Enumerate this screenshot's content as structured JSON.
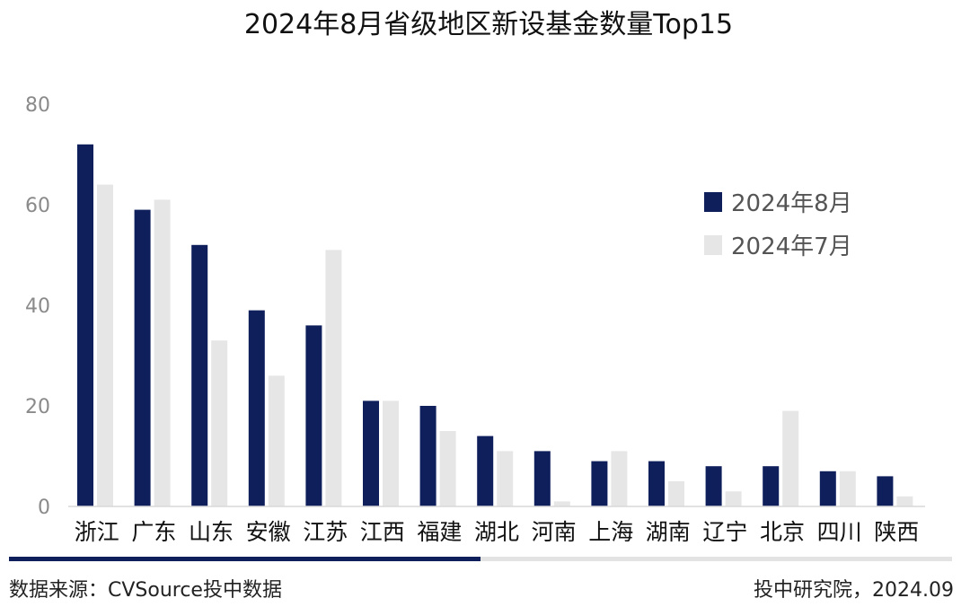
{
  "chart_data": {
    "type": "bar",
    "title": "2024年8月省级地区新设基金数量Top15",
    "xlabel": "",
    "ylabel": "",
    "ylim": [
      0,
      80
    ],
    "yticks": [
      0,
      20,
      40,
      60,
      80
    ],
    "grid": false,
    "legend_position": "right",
    "categories": [
      "浙江",
      "广东",
      "山东",
      "安徽",
      "江苏",
      "江西",
      "福建",
      "湖北",
      "河南",
      "上海",
      "湖南",
      "辽宁",
      "北京",
      "四川",
      "陕西"
    ],
    "series": [
      {
        "name": "2024年8月",
        "color": "#0e1f5b",
        "values": [
          72,
          59,
          52,
          39,
          36,
          21,
          20,
          14,
          11,
          9,
          9,
          8,
          8,
          7,
          6
        ]
      },
      {
        "name": "2024年7月",
        "color": "#e6e6e6",
        "values": [
          64,
          61,
          33,
          26,
          51,
          21,
          15,
          11,
          1,
          11,
          5,
          3,
          19,
          7,
          2
        ]
      }
    ]
  },
  "footer": {
    "source": "数据来源：CVSource投中数据",
    "credit": "投中研究院，2024.09",
    "accent_color": "#0e1f5b",
    "line_color": "#e3e3e3"
  }
}
